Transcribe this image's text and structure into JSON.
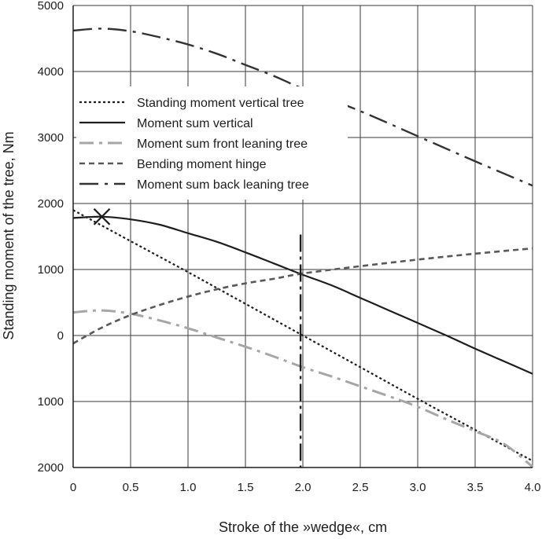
{
  "chart_data": {
    "type": "line",
    "xlabel": "Stroke of the »wedge«, cm",
    "ylabel": "Standing moment of the tree, Nm",
    "xlim": [
      0,
      4
    ],
    "ylim": [
      -2000,
      5000
    ],
    "x_ticks": [
      0,
      0.5,
      1,
      1.5,
      2,
      2.5,
      3,
      3.5,
      4
    ],
    "x_tick_labels": [
      "0",
      "0.5",
      "1.0",
      "1.5",
      "2.0",
      "2.5",
      "3.0",
      "3.5",
      "4.0"
    ],
    "y_ticks": [
      5000,
      4000,
      3000,
      2000,
      1000,
      0,
      -1000,
      -2000
    ],
    "y_tick_labels": [
      "5000",
      "4000",
      "3000",
      "2000",
      "1000",
      "0",
      "1000",
      "2000"
    ],
    "grid": true,
    "legend_position": "upper-left",
    "series": [
      {
        "name": "Standing moment vertical tree",
        "style": "dotted",
        "color": "#1e1e1e",
        "x": [
          0,
          0.5,
          1.0,
          1.5,
          2.0,
          2.5,
          3.0,
          3.5,
          4.0
        ],
        "y": [
          1900,
          1430,
          960,
          480,
          0,
          -480,
          -960,
          -1430,
          -1900
        ]
      },
      {
        "name": "Moment sum vertical",
        "style": "solid",
        "color": "#1e1e1e",
        "x": [
          0,
          0.25,
          0.5,
          0.75,
          1.0,
          1.25,
          1.5,
          1.75,
          2.0,
          2.25,
          2.5,
          2.75,
          3.0,
          3.25,
          3.5,
          3.75,
          4.0
        ],
        "y": [
          1780,
          1800,
          1760,
          1680,
          1550,
          1420,
          1260,
          1090,
          920,
          760,
          570,
          380,
          190,
          0,
          -200,
          -390,
          -580
        ]
      },
      {
        "name": "Moment sum front leaning tree",
        "style": "dash-dot",
        "color": "#a6a6a6",
        "x": [
          0,
          0.25,
          0.5,
          0.75,
          1.0,
          1.25,
          1.5,
          1.75,
          2.0,
          2.25,
          2.5,
          2.75,
          3.0,
          3.25,
          3.5,
          3.75,
          4.0
        ],
        "y": [
          350,
          380,
          330,
          230,
          110,
          -30,
          -170,
          -320,
          -480,
          -620,
          -770,
          -920,
          -1080,
          -1270,
          -1450,
          -1640,
          -1990
        ]
      },
      {
        "name": "Bending moment hinge",
        "style": "dashed",
        "color": "#595959",
        "x": [
          0,
          0.25,
          0.5,
          0.75,
          1.0,
          1.25,
          1.5,
          1.75,
          2.0,
          2.5,
          3.0,
          3.5,
          4.0
        ],
        "y": [
          -120,
          120,
          310,
          460,
          590,
          700,
          790,
          860,
          940,
          1050,
          1150,
          1240,
          1320
        ]
      },
      {
        "name": "Moment sum back leaning tree",
        "style": "long-dash-dot",
        "color": "#333333",
        "x": [
          0,
          0.25,
          0.5,
          0.75,
          1.0,
          1.25,
          1.5,
          1.75,
          2.0,
          2.5,
          3.0,
          3.5,
          4.0
        ],
        "y": [
          4620,
          4650,
          4610,
          4520,
          4410,
          4270,
          4100,
          3930,
          3740,
          3400,
          3020,
          2640,
          2270
        ]
      }
    ],
    "annotations": [
      {
        "type": "vertical-line",
        "style": "dash-dot",
        "x": 1.98,
        "y_from": -2000,
        "y_to": 1530
      },
      {
        "type": "cross-marker",
        "x": 0.25,
        "y": 1800
      }
    ]
  }
}
